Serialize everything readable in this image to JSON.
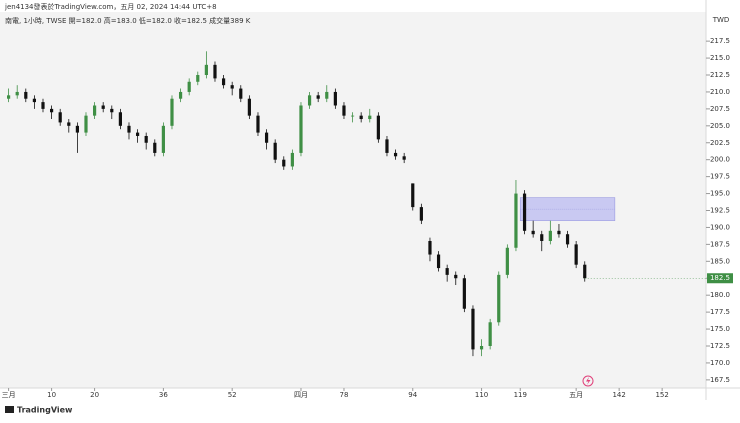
{
  "header": {
    "attribution": "jen4134發表於TradingView.com，五月 02, 2024 14:44 UTC+8",
    "legend": "南電, 1小時, TWSE  開=182.0  高=183.0  低=182.0  收=182.5  成交量389 K",
    "currency": "TWD"
  },
  "footer": {
    "brand": "TradingView"
  },
  "chart_data": {
    "type": "candlestick",
    "up_color": "#3f8f45",
    "down_color": "#111111",
    "xlim": [
      -2,
      162.2
    ],
    "ylim": [
      166.3,
      221.8
    ],
    "xticks": [
      {
        "value": 0,
        "label": "三月"
      },
      10,
      20,
      36,
      52,
      {
        "value": 68,
        "label": "四月"
      },
      78,
      94,
      110,
      119,
      {
        "value": 132,
        "label": "五月"
      },
      142,
      152
    ],
    "yticks": [
      167.5,
      {
        "value": 170,
        "label": "170.0"
      },
      172.5,
      {
        "value": 175,
        "label": "175.0"
      },
      177.5,
      {
        "value": 180,
        "label": "180.0"
      },
      182.5,
      {
        "value": 185,
        "label": "185.0"
      },
      187.5,
      {
        "value": 190,
        "label": "190.0"
      },
      192.5,
      {
        "value": 195,
        "label": "195.0"
      },
      197.5,
      {
        "value": 200,
        "label": "200.0"
      },
      202.5,
      {
        "value": 205,
        "label": "205.0"
      },
      207.5,
      {
        "value": 210,
        "label": "210.0"
      },
      212.5,
      {
        "value": 215,
        "label": "215.0"
      },
      217.5
    ],
    "last_price": 182.5,
    "last_price_color": "#3f8f45",
    "zone": {
      "x": [
        119,
        141
      ],
      "y": [
        191,
        194.4
      ],
      "color": "#c9c9f2"
    },
    "x": [
      0,
      2,
      4,
      6,
      8,
      10,
      12,
      14,
      16,
      18,
      20,
      22,
      24,
      26,
      28,
      30,
      32,
      34,
      36,
      38,
      40,
      42,
      44,
      46,
      48,
      50,
      52,
      54,
      56,
      58,
      60,
      62,
      64,
      66,
      68,
      70,
      72,
      74,
      76,
      78,
      80,
      82,
      84,
      86,
      88,
      90,
      92,
      94,
      96,
      98,
      100,
      102,
      104,
      106,
      108,
      110,
      112,
      114,
      116,
      118,
      120,
      122,
      124,
      126,
      128,
      130,
      132,
      134
    ],
    "open": [
      209,
      209.5,
      210,
      209,
      208.5,
      207.5,
      207,
      205.5,
      205,
      204,
      206.5,
      208,
      207.5,
      207,
      205,
      204,
      203.5,
      202.5,
      201,
      205,
      209,
      210,
      211.5,
      212.5,
      214,
      212,
      211,
      210.5,
      209,
      206.5,
      204,
      202.5,
      200,
      199,
      201,
      208,
      209.5,
      209,
      210,
      208,
      206.5,
      206.5,
      206,
      206.5,
      203,
      201,
      200.5,
      196.5,
      193,
      188,
      186,
      184,
      183,
      182.5,
      178,
      172,
      172.5,
      176,
      183,
      187,
      195,
      189.5,
      189,
      188,
      189.5,
      189,
      187.5,
      184.5
    ],
    "high": [
      210.5,
      211,
      210.5,
      209.5,
      209,
      208,
      207.5,
      206,
      205.5,
      207,
      208.5,
      208.5,
      208,
      207.5,
      205.5,
      204.5,
      204,
      203,
      205.5,
      209.5,
      210.5,
      212,
      213,
      216,
      214.5,
      212.5,
      211.5,
      211,
      209.5,
      207,
      204.5,
      203,
      200.5,
      201.5,
      208.5,
      210,
      210,
      211,
      210.5,
      208.5,
      207,
      207,
      207.5,
      207,
      203.5,
      201.5,
      201,
      196.5,
      193.5,
      188.5,
      186.5,
      184.5,
      183.5,
      183,
      178.5,
      173.5,
      176.5,
      183.5,
      187.5,
      197,
      195.5,
      191,
      189.5,
      191,
      190.5,
      189.5,
      188,
      185
    ],
    "low": [
      208.5,
      209,
      208.5,
      207.5,
      207,
      206,
      205,
      204,
      201,
      203.5,
      206,
      207,
      206,
      204.5,
      203,
      202.5,
      201.5,
      200.5,
      200.5,
      204.5,
      208.5,
      209.5,
      211,
      212,
      211.5,
      210.5,
      209.5,
      208.5,
      206,
      203.5,
      201.5,
      199.5,
      198.5,
      198.5,
      200.5,
      207.5,
      208.5,
      208.5,
      207.5,
      206,
      205.5,
      205.5,
      205.5,
      202.5,
      200.5,
      200,
      199.5,
      192.5,
      190.5,
      185,
      183.5,
      182,
      181.5,
      177.5,
      171,
      171,
      172,
      175.5,
      182.5,
      186.5,
      189,
      188.5,
      186.5,
      187.5,
      188.5,
      187,
      184,
      182
    ],
    "close": [
      209.5,
      210,
      209,
      208.5,
      207.5,
      207,
      205.5,
      205,
      204,
      206.5,
      208,
      207.5,
      207,
      205,
      204,
      203.5,
      202.5,
      201,
      205,
      209,
      210,
      211.5,
      212.5,
      214,
      212,
      211,
      210.5,
      209,
      206.5,
      204,
      202.5,
      200,
      199,
      201,
      208,
      209.5,
      209,
      210,
      208,
      206.5,
      206.5,
      206,
      206.5,
      203,
      201,
      200.5,
      200,
      193,
      191,
      186,
      184,
      183,
      182.5,
      178,
      172,
      172.5,
      176,
      183,
      187,
      195,
      189.5,
      189,
      188,
      189.5,
      189,
      187.5,
      184.5,
      182.5
    ]
  }
}
